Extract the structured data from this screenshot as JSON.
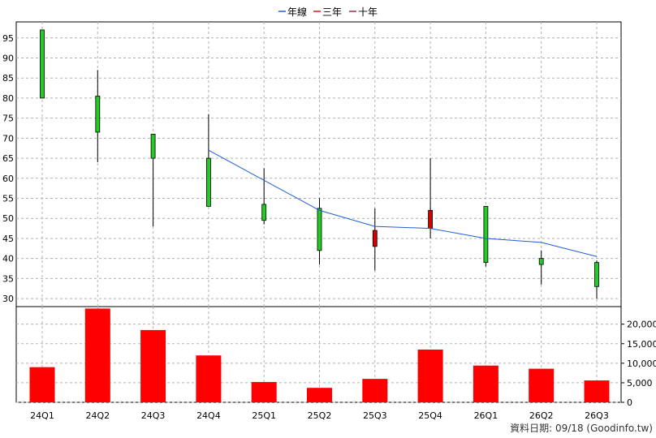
{
  "legend": [
    {
      "label": "年線",
      "color": "#1f5fd6"
    },
    {
      "label": "三年",
      "color": "#d41a1a"
    },
    {
      "label": "十年",
      "color": "#9a2a5a"
    }
  ],
  "footer": "資料日期: 09/18  (Goodinfo.tw)",
  "colors": {
    "up": "#d40000",
    "down": "#22cc22",
    "volume": "#ff0000",
    "year_line": "#1f5fd6",
    "grid": "#b0b0b0"
  },
  "chart_data": [
    {
      "type": "candlestick",
      "categories": [
        "24Q1",
        "24Q2",
        "24Q3",
        "24Q4",
        "25Q1",
        "25Q2",
        "25Q3",
        "25Q4",
        "26Q1",
        "26Q2",
        "26Q3"
      ],
      "ohlc": [
        {
          "open": 97,
          "high": 97,
          "low": 80,
          "close": 80
        },
        {
          "open": 80.5,
          "high": 87,
          "low": 64,
          "close": 71.5
        },
        {
          "open": 71,
          "high": 71,
          "low": 48,
          "close": 65
        },
        {
          "open": 65,
          "high": 76,
          "low": 53,
          "close": 53
        },
        {
          "open": 53.5,
          "high": 62.5,
          "low": 48.5,
          "close": 49.5
        },
        {
          "open": 52.5,
          "high": 55,
          "low": 38.5,
          "close": 42
        },
        {
          "open": 43,
          "high": 52.5,
          "low": 37,
          "close": 47
        },
        {
          "open": 47.5,
          "high": 65,
          "low": 45,
          "close": 52
        },
        {
          "open": 53,
          "high": 53,
          "low": 38,
          "close": 39
        },
        {
          "open": 40,
          "high": 42,
          "low": 33.5,
          "close": 38.5
        },
        {
          "open": 39,
          "high": 39.5,
          "low": 30,
          "close": 33
        }
      ],
      "year_line": [
        null,
        null,
        null,
        67,
        59.5,
        52,
        48,
        47.5,
        45,
        44,
        40.5
      ],
      "ylim": [
        28,
        99
      ],
      "yticks": [
        30,
        35,
        40,
        45,
        50,
        55,
        60,
        65,
        70,
        75,
        80,
        85,
        90,
        95
      ]
    },
    {
      "type": "bar",
      "categories": [
        "24Q1",
        "24Q2",
        "24Q3",
        "24Q4",
        "25Q1",
        "25Q2",
        "25Q3",
        "25Q4",
        "26Q1",
        "26Q2",
        "26Q3"
      ],
      "values": [
        9000,
        24000,
        18500,
        12000,
        5200,
        3700,
        6000,
        13500,
        9400,
        8600,
        5600
      ],
      "ylim": [
        0,
        24500
      ],
      "yticks": [
        0,
        5000,
        10000,
        15000,
        20000
      ],
      "ytick_labels": [
        "0",
        "5,000",
        "10,000",
        "15,000",
        "20,000"
      ]
    }
  ]
}
